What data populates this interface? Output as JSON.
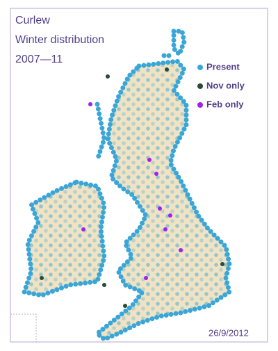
{
  "title_lines": [
    "Curlew",
    "Winter distribution",
    "2007—11"
  ],
  "legend": [
    {
      "name": "Present",
      "color": "#3aa6d8"
    },
    {
      "name": "Nov only",
      "color": "#2a4a35"
    },
    {
      "name": "Feb only",
      "color": "#a020f0"
    }
  ],
  "date": "26/9/2012"
}
